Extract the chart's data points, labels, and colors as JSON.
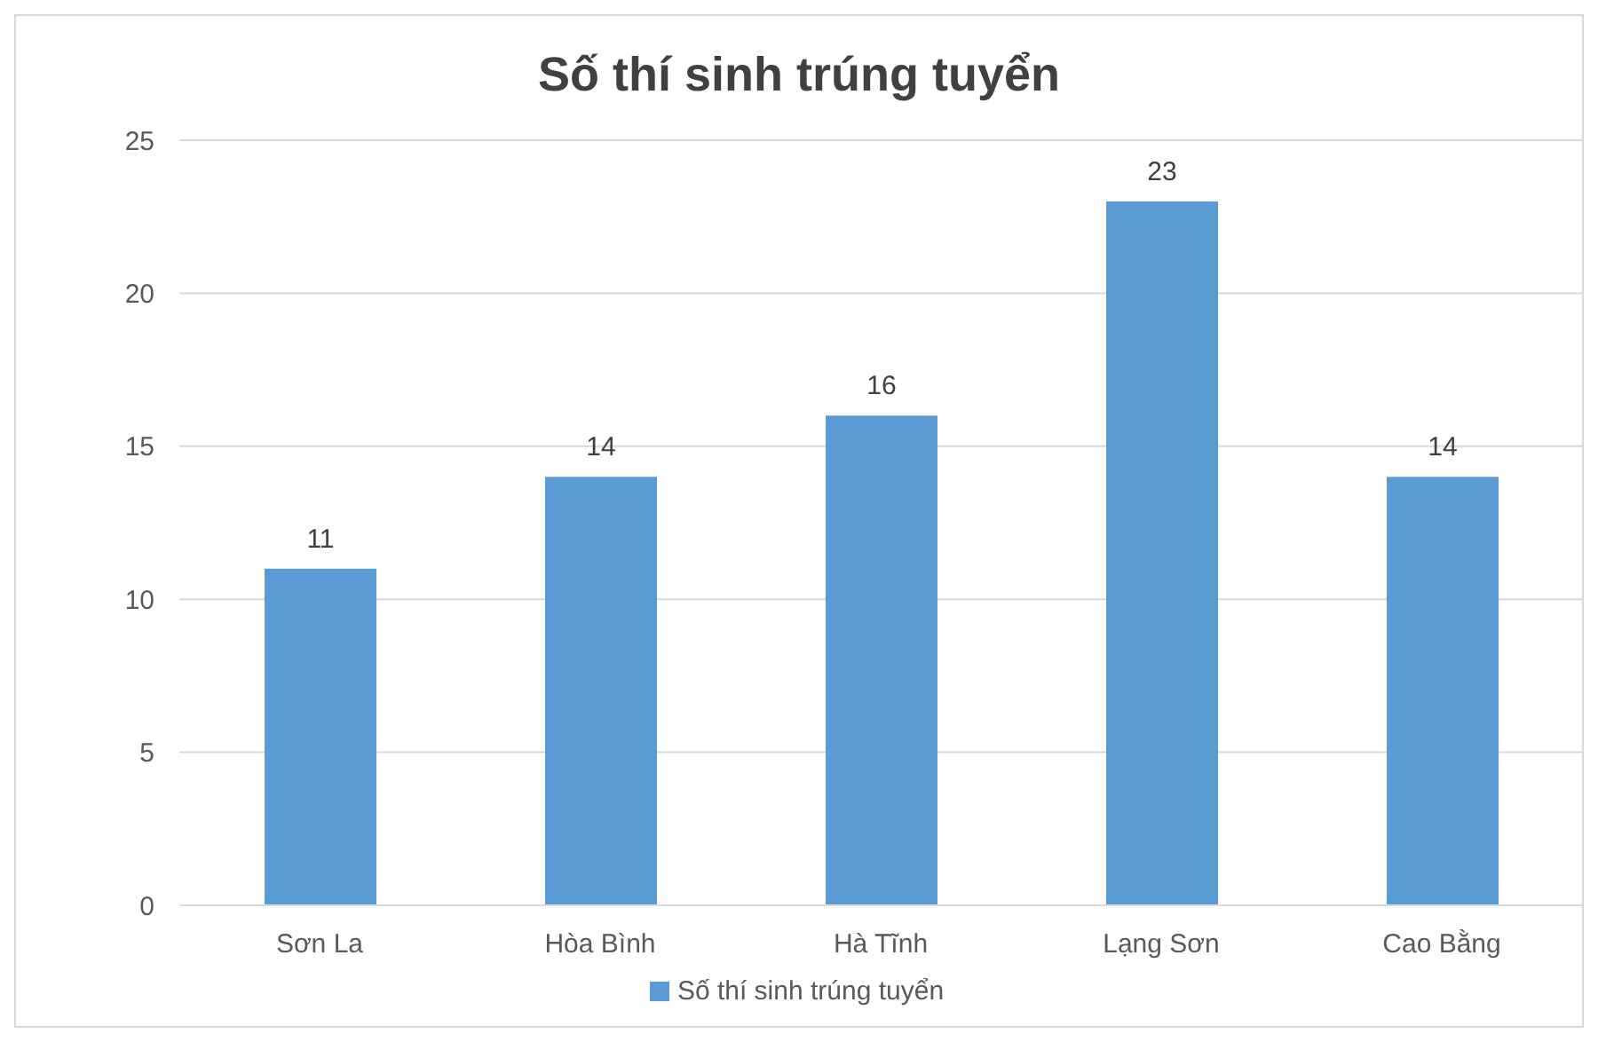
{
  "chart_data": {
    "type": "bar",
    "title": "Số thí sinh trúng tuyển",
    "categories": [
      "Sơn La",
      "Hòa Bình",
      "Hà Tĩnh",
      "Lạng Sơn",
      "Cao Bằng"
    ],
    "series": [
      {
        "name": "Số thí sinh trúng tuyển",
        "color": "#5b9bd5",
        "values": [
          11,
          14,
          16,
          23,
          14
        ]
      }
    ],
    "ylim": [
      0,
      25
    ],
    "yticks": [
      0,
      5,
      10,
      15,
      20,
      25
    ],
    "grid": "y",
    "legend": "bottom",
    "data_labels": true
  }
}
